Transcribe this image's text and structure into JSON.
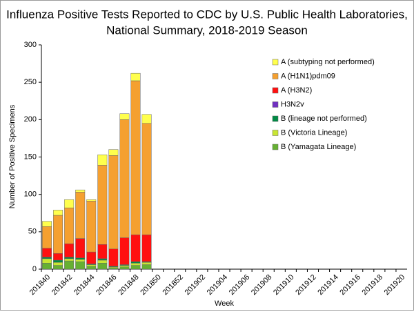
{
  "chart_data": {
    "type": "stacked_bar",
    "title": [
      "Influenza Positive Tests Reported to CDC by U.S. Public Health Laboratories,",
      "National Summary, 2018-2019 Season"
    ],
    "x_label": "Week",
    "y_label": "Number of Positive Specimens",
    "categories": [
      "201840",
      null,
      "201842",
      null,
      "201844",
      null,
      "201846",
      null,
      "201848",
      null,
      "201850",
      null,
      "201852",
      null,
      "201902",
      null,
      "201904",
      null,
      "201906",
      null,
      "201908",
      null,
      "201910",
      null,
      "201912",
      null,
      "201914",
      null,
      "201916",
      null,
      "201918",
      null,
      "201920"
    ],
    "series": [
      {
        "name": "A (subtyping not performed)",
        "color": "#ffff4d",
        "values": [
          7,
          7,
          11,
          3,
          2,
          14,
          8,
          8,
          10,
          12,
          null,
          null,
          null,
          null,
          null,
          null,
          null,
          null,
          null,
          null,
          null,
          null,
          null,
          null,
          null,
          null,
          null,
          null,
          null,
          null,
          null,
          null,
          null
        ]
      },
      {
        "name": "A (H1N1)pdm09",
        "color": "#f5a030",
        "values": [
          29,
          51,
          48,
          62,
          68,
          106,
          125,
          158,
          206,
          149,
          null,
          null,
          null,
          null,
          null,
          null,
          null,
          null,
          null,
          null,
          null,
          null,
          null,
          null,
          null,
          null,
          null,
          null,
          null,
          null,
          null,
          null,
          null
        ]
      },
      {
        "name": "A (H3N2)",
        "color": "#ff1010",
        "values": [
          12,
          9,
          18,
          26,
          16,
          19,
          23,
          36,
          36,
          36,
          null,
          null,
          null,
          null,
          null,
          null,
          null,
          null,
          null,
          null,
          null,
          null,
          null,
          null,
          null,
          null,
          null,
          null,
          null,
          null,
          null,
          null,
          null
        ]
      },
      {
        "name": "H3N2v",
        "color": "#7030c0",
        "values": [
          0,
          0,
          0,
          0,
          0,
          0,
          0,
          0,
          0,
          0,
          null,
          null,
          null,
          null,
          null,
          null,
          null,
          null,
          null,
          null,
          null,
          null,
          null,
          null,
          null,
          null,
          null,
          null,
          null,
          null,
          null,
          null,
          null
        ]
      },
      {
        "name": "B (lineage not performed)",
        "color": "#008a45",
        "values": [
          2,
          3,
          2,
          2,
          1,
          2,
          1,
          1,
          2,
          1,
          null,
          null,
          null,
          null,
          null,
          null,
          null,
          null,
          null,
          null,
          null,
          null,
          null,
          null,
          null,
          null,
          null,
          null,
          null,
          null,
          null,
          null,
          null
        ]
      },
      {
        "name": "B (Victoria Lineage)",
        "color": "#c8e632",
        "values": [
          6,
          4,
          3,
          3,
          2,
          4,
          1,
          2,
          3,
          3,
          null,
          null,
          null,
          null,
          null,
          null,
          null,
          null,
          null,
          null,
          null,
          null,
          null,
          null,
          null,
          null,
          null,
          null,
          null,
          null,
          null,
          null,
          null
        ]
      },
      {
        "name": "B (Yamagata Lineage)",
        "color": "#66b032",
        "values": [
          8,
          5,
          11,
          10,
          4,
          8,
          2,
          3,
          5,
          6,
          null,
          null,
          null,
          null,
          null,
          null,
          null,
          null,
          null,
          null,
          null,
          null,
          null,
          null,
          null,
          null,
          null,
          null,
          null,
          null,
          null,
          null,
          null
        ]
      }
    ],
    "ylim": [
      0,
      300
    ],
    "yticks": [
      0,
      50,
      100,
      150,
      200,
      250,
      300
    ],
    "grid": false
  }
}
